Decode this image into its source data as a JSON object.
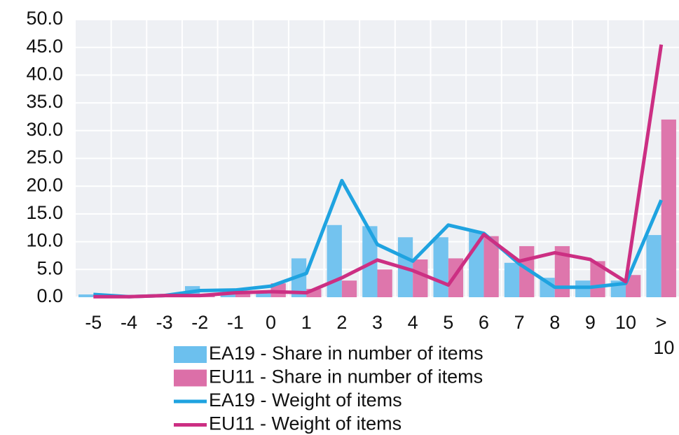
{
  "chart_data": {
    "type": "bar_line",
    "categories": [
      "-5",
      "-4",
      "-3",
      "-2",
      "-1",
      "0",
      "1",
      "2",
      "3",
      "4",
      "5",
      "6",
      "7",
      "8",
      "9",
      "10",
      "> 10"
    ],
    "series": [
      {
        "name": "EA19 - Share in number of items",
        "kind": "bar",
        "color": "#6cc0ee",
        "values": [
          0.5,
          0,
          0.2,
          2.0,
          0.8,
          0.8,
          7.0,
          13.0,
          12.8,
          10.8,
          10.8,
          11.8,
          6.2,
          3.5,
          3.0,
          3.0,
          11.2
        ]
      },
      {
        "name": "EU11 - Share in number of items",
        "kind": "bar",
        "color": "#dc6fa8",
        "values": [
          0,
          0,
          0.2,
          0.3,
          1.0,
          2.5,
          1.5,
          3.0,
          5.0,
          6.8,
          7.0,
          11.0,
          9.2,
          9.2,
          6.5,
          4.0,
          32.0
        ]
      },
      {
        "name": "EA19 - Weight of items",
        "kind": "line",
        "color": "#1fa3e0",
        "values": [
          0.5,
          0.1,
          0.3,
          1.2,
          1.3,
          2.0,
          4.3,
          21.0,
          9.5,
          6.5,
          13.0,
          11.5,
          6.0,
          1.8,
          1.8,
          2.5,
          17.5
        ]
      },
      {
        "name": "EU11 - Weight of items",
        "kind": "line",
        "color": "#cc2f83",
        "values": [
          0.1,
          0.1,
          0.3,
          0.3,
          0.8,
          1.0,
          0.8,
          3.5,
          6.7,
          4.8,
          2.2,
          11.3,
          6.5,
          8.0,
          6.8,
          2.8,
          45.5
        ]
      }
    ],
    "ylim": [
      0,
      50
    ],
    "yticks": [
      {
        "value": 0,
        "label": "0.0"
      },
      {
        "value": 5,
        "label": "5.0"
      },
      {
        "value": 10,
        "label": "10.0"
      },
      {
        "value": 15,
        "label": "15.0"
      },
      {
        "value": 20,
        "label": "20.0"
      },
      {
        "value": 25,
        "label": "25.0"
      },
      {
        "value": 30,
        "label": "30.0"
      },
      {
        "value": 35,
        "label": "35.0"
      },
      {
        "value": 40,
        "label": "40.0"
      },
      {
        "value": 45,
        "label": "45.0"
      },
      {
        "value": 50,
        "label": "50.0"
      }
    ],
    "grid": true
  }
}
